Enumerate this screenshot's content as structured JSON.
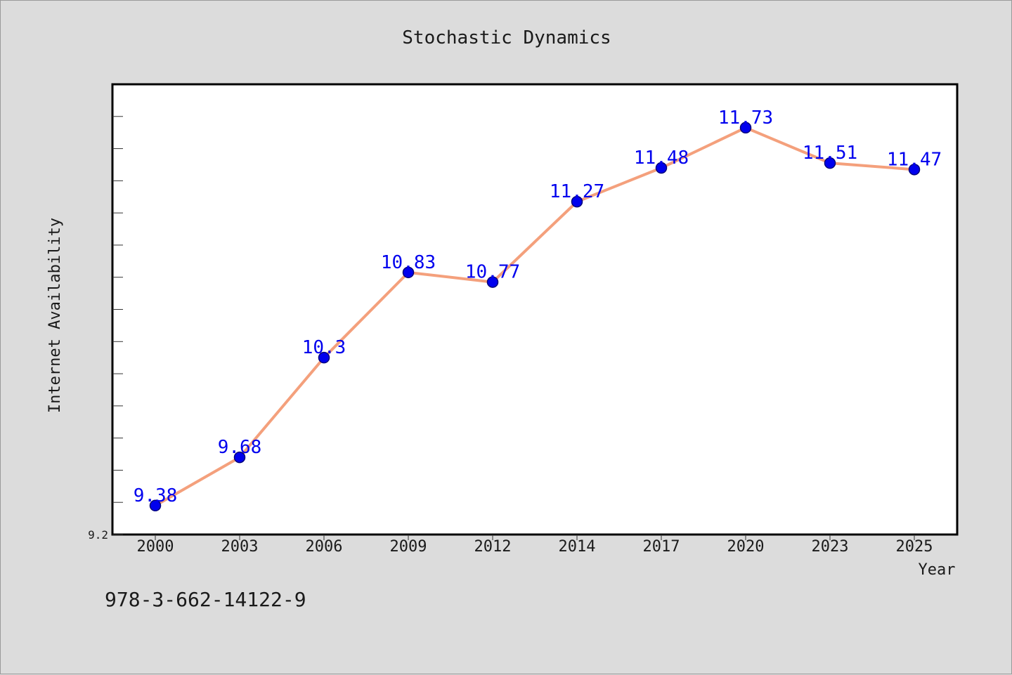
{
  "chart_data": {
    "type": "line",
    "title": "Stochastic Dynamics",
    "xlabel": "Year",
    "ylabel": "Internet Availability",
    "categories": [
      "2000",
      "2003",
      "2006",
      "2009",
      "2012",
      "2014",
      "2017",
      "2020",
      "2023",
      "2025"
    ],
    "series": [
      {
        "values": [
          9.38,
          9.68,
          10.3,
          10.83,
          10.77,
          11.27,
          11.48,
          11.73,
          11.51,
          11.47
        ]
      }
    ],
    "data_labels": [
      "9.38",
      "9.68",
      "10.3",
      "10.83",
      "10.77",
      "11.27",
      "11.48",
      "11.73",
      "11.51",
      "11.47"
    ],
    "ylim": [
      9.2,
      12.0
    ],
    "yticks": [
      {
        "value": 9.2,
        "label": "9.2"
      }
    ],
    "grid": false,
    "colors": {
      "line": "#f4a07c",
      "marker": "#0000ee",
      "marker_edge": "#00007a",
      "label": "#0000ee",
      "background": "#dcdcdc",
      "plot_background": "#ffffff"
    }
  },
  "footer": {
    "isbn": "978-3-662-14122-9"
  }
}
